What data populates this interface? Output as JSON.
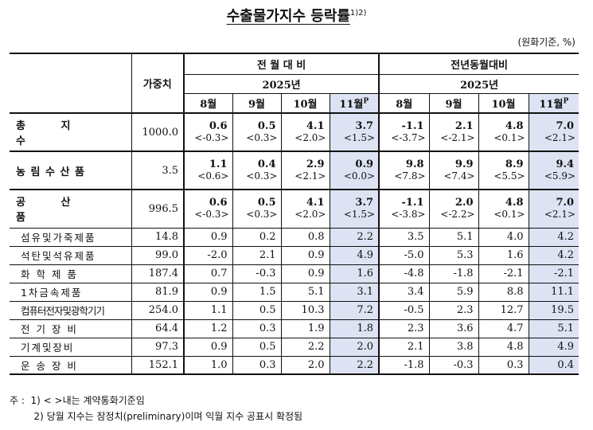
{
  "title": "수출물가지수 등락률",
  "title_sup": "1)2)",
  "unit": "(원화기준, %)",
  "header": {
    "weight": "가중치",
    "group1": "전 월 대 비",
    "group2": "전년동월대비",
    "year": "2025년",
    "months": [
      "8월",
      "9월",
      "10월",
      "11월"
    ],
    "prelim_mark": "P"
  },
  "main_rows": [
    {
      "label": "총 지 수",
      "weight": "1000.0",
      "values": [
        "0.6",
        "0.5",
        "4.1",
        "3.7",
        "-1.1",
        "2.1",
        "4.8",
        "7.0"
      ],
      "brackets": [
        "<-0.3>",
        "<0.3>",
        "<2.0>",
        "<1.5>",
        "<-3.7>",
        "<-2.1>",
        "<0.1>",
        "<2.1>"
      ]
    },
    {
      "label": "농 림 수 산 품",
      "weight": "3.5",
      "values": [
        "1.1",
        "0.4",
        "2.9",
        "0.9",
        "9.8",
        "9.9",
        "8.9",
        "9.4"
      ],
      "brackets": [
        "<0.6>",
        "<0.3>",
        "<2.1>",
        "<0.0>",
        "<7.8>",
        "<7.4>",
        "<5.5>",
        "<5.9>"
      ]
    },
    {
      "label": "공 산 품",
      "weight": "996.5",
      "values": [
        "0.6",
        "0.5",
        "4.1",
        "3.7",
        "-1.1",
        "2.0",
        "4.8",
        "7.0"
      ],
      "brackets": [
        "<-0.3>",
        "<0.3>",
        "<2.0>",
        "<1.5>",
        "<-3.8>",
        "<-2.2>",
        "<0.1>",
        "<2.1>"
      ]
    }
  ],
  "sub_rows": [
    {
      "label": "섬유및가죽제품",
      "weight": "14.8",
      "values": [
        "0.9",
        "0.2",
        "0.8",
        "2.2",
        "3.5",
        "5.1",
        "4.0",
        "4.2"
      ]
    },
    {
      "label": "석탄및석유제품",
      "weight": "99.0",
      "values": [
        "-2.0",
        "2.1",
        "0.9",
        "4.9",
        "-5.0",
        "5.3",
        "1.6",
        "4.2"
      ]
    },
    {
      "label": "화 학 제 품",
      "weight": "187.4",
      "values": [
        "0.7",
        "-0.3",
        "0.9",
        "1.6",
        "-4.8",
        "-1.8",
        "-2.1",
        "-2.1"
      ]
    },
    {
      "label": "1 차 금 속 제 품",
      "weight": "81.9",
      "values": [
        "0.9",
        "1.5",
        "5.1",
        "3.1",
        "3.4",
        "5.9",
        "8.8",
        "11.1"
      ]
    },
    {
      "label": "컴퓨터전자및광학기기",
      "weight": "254.0",
      "values": [
        "1.1",
        "0.5",
        "10.3",
        "7.2",
        "-0.5",
        "2.3",
        "12.7",
        "19.5"
      ]
    },
    {
      "label": "전 기 장 비",
      "weight": "64.4",
      "values": [
        "1.2",
        "0.3",
        "1.9",
        "1.8",
        "2.3",
        "3.6",
        "4.7",
        "5.1"
      ]
    },
    {
      "label": "기 계 및 장 비",
      "weight": "97.3",
      "values": [
        "0.9",
        "0.5",
        "2.2",
        "2.0",
        "2.1",
        "3.8",
        "4.8",
        "4.9"
      ]
    },
    {
      "label": "운 송 장 비",
      "weight": "152.1",
      "values": [
        "1.0",
        "0.3",
        "2.0",
        "2.2",
        "-1.8",
        "-0.3",
        "0.3",
        "0.4"
      ]
    }
  ],
  "notes": [
    "주 :  1) < >내는 계약통화기준임",
    "        2) 당월 지수는 잠정치(preliminary)이며 익월 지수 공표시 확정됨"
  ]
}
